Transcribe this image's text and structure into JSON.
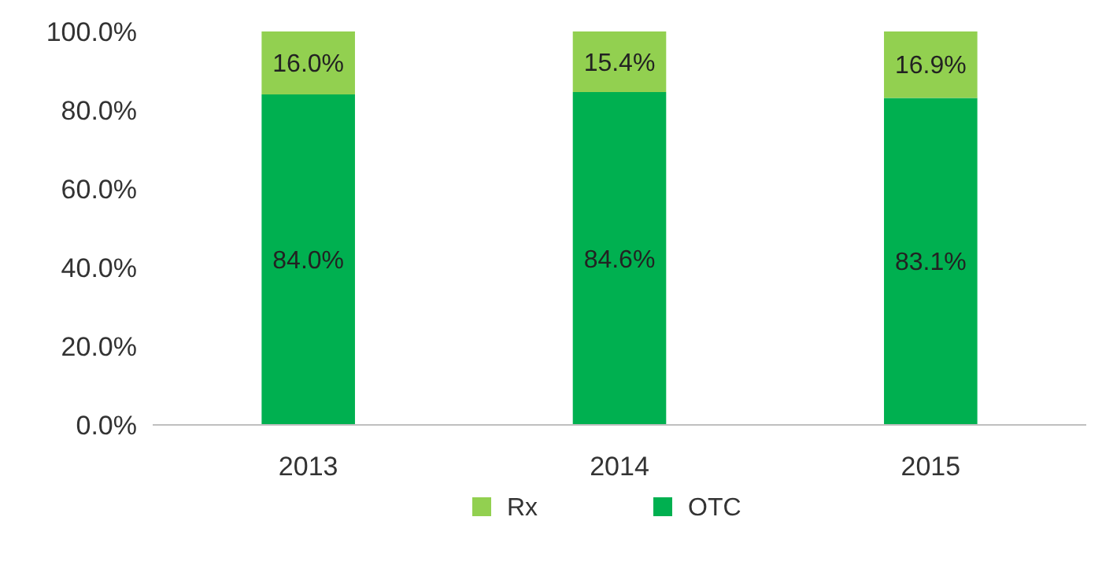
{
  "chart_data": {
    "type": "bar",
    "stacked": true,
    "categories": [
      "2013",
      "2014",
      "2015"
    ],
    "series": [
      {
        "name": "OTC",
        "color": "#00b050",
        "values": [
          84.0,
          84.6,
          83.1
        ],
        "value_labels": [
          "84.0%",
          "84.6%",
          "83.1%"
        ]
      },
      {
        "name": "Rx",
        "color": "#92d050",
        "values": [
          16.0,
          15.4,
          16.9
        ],
        "value_labels": [
          "16.0%",
          "15.4%",
          "16.9%"
        ]
      }
    ],
    "ylim": [
      0,
      100
    ],
    "yticks": [
      {
        "value": 0,
        "label": "0.0%"
      },
      {
        "value": 20,
        "label": "20.0%"
      },
      {
        "value": 40,
        "label": "40.0%"
      },
      {
        "value": 60,
        "label": "60.0%"
      },
      {
        "value": 80,
        "label": "80.0%"
      },
      {
        "value": 100,
        "label": "100.0%"
      }
    ],
    "legend": "bottom"
  }
}
